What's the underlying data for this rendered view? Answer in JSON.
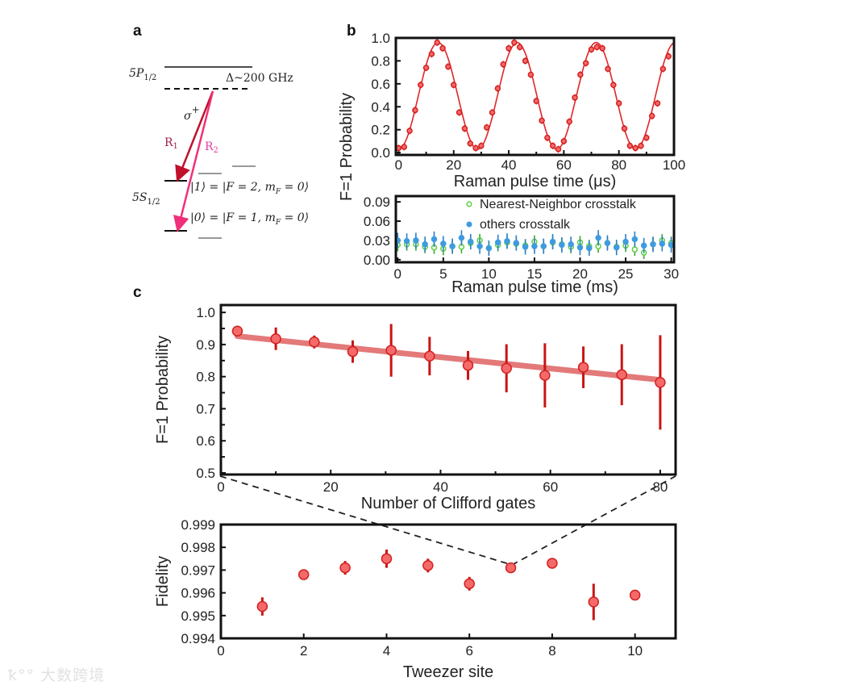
{
  "panel_labels": {
    "a": "a",
    "b": "b",
    "c": "c"
  },
  "diagram": {
    "upper_level": "5P",
    "upper_level_sub": "1/2",
    "detuning": "Δ~200 GHz",
    "polarization": "σ",
    "polarization_sup": "+",
    "beam1": "R",
    "beam1_sub": "1",
    "beam2": "R",
    "beam2_sub": "2",
    "lower_level": "5S",
    "lower_level_sub": "1/2",
    "state1": "|1⟩ = |F = 2, m",
    "state1_sub": "F",
    "state1_end": " = 0⟩",
    "state0": "|0⟩ = |F = 1, m",
    "state0_sub": "F",
    "state0_end": " = 0⟩",
    "colors": {
      "beam1": "#c0102a",
      "beam2": "#f0307a",
      "level": "#111111",
      "sublevel": "#999999"
    }
  },
  "shared_ylabel_b": "F=1 Probability",
  "watermark": "大数跨境",
  "chart_data": [
    {
      "id": "rabi",
      "type": "scatter",
      "xlabel": "Raman pulse time (μs)",
      "ylabel": "F=1 Probability",
      "xlim": [
        -1,
        100
      ],
      "ylim": [
        -0.02,
        1.0
      ],
      "xticks": [
        0,
        20,
        40,
        60,
        80,
        100
      ],
      "xtick_labels": [
        "0",
        "20",
        "40",
        "60",
        "80",
        "100"
      ],
      "yticks": [
        0,
        0.2,
        0.4,
        0.6,
        0.8,
        1.0
      ],
      "ytick_labels": [
        "0.0",
        "0.2",
        "0.4",
        "0.6",
        "0.8",
        "1.0"
      ],
      "color": "#e0262a",
      "x": [
        0,
        2,
        4,
        6,
        8,
        10,
        12,
        14,
        16,
        18,
        20,
        22,
        24,
        26,
        28,
        30,
        32,
        34,
        36,
        38,
        40,
        42,
        44,
        46,
        48,
        50,
        52,
        54,
        56,
        58,
        60,
        62,
        64,
        66,
        68,
        70,
        72,
        74,
        76,
        78,
        80,
        82,
        84,
        86,
        88,
        90,
        92,
        94,
        96,
        98
      ],
      "y": [
        0.04,
        0.05,
        0.19,
        0.37,
        0.59,
        0.74,
        0.86,
        0.96,
        0.91,
        0.75,
        0.59,
        0.35,
        0.21,
        0.08,
        0.04,
        0.06,
        0.22,
        0.35,
        0.56,
        0.77,
        0.91,
        0.96,
        0.92,
        0.8,
        0.68,
        0.45,
        0.28,
        0.13,
        0.06,
        0.03,
        0.1,
        0.27,
        0.48,
        0.68,
        0.78,
        0.9,
        0.92,
        0.91,
        0.73,
        0.59,
        0.43,
        0.21,
        0.06,
        0.04,
        0.06,
        0.13,
        0.32,
        0.43,
        0.73,
        0.84
      ],
      "err": 0.03,
      "fit": {
        "model": "offset + amplitude*(1-cos(2*pi*t/period))/2",
        "offset": 0.03,
        "amplitude": 0.93,
        "period": 28.7
      }
    },
    {
      "id": "crosstalk",
      "type": "scatter",
      "xlabel": "Raman pulse time (ms)",
      "xlim": [
        -0.2,
        30.3
      ],
      "ylim": [
        -0.004,
        0.099
      ],
      "xticks": [
        0,
        5,
        10,
        15,
        20,
        25,
        30
      ],
      "xtick_labels": [
        "0",
        "5",
        "10",
        "15",
        "20",
        "25",
        "30"
      ],
      "yticks": [
        0,
        0.03,
        0.06,
        0.09
      ],
      "ytick_labels": [
        "0.00",
        "0.03",
        "0.06",
        "0.09"
      ],
      "legend_position": "top-right",
      "x": [
        0,
        1,
        2,
        3,
        4,
        5,
        6,
        7,
        8,
        9,
        10,
        11,
        12,
        13,
        14,
        15,
        16,
        17,
        18,
        19,
        20,
        21,
        22,
        23,
        24,
        25,
        26,
        27,
        28,
        29,
        30
      ],
      "series": [
        {
          "name": "Nearest-Neighbor crosstalk",
          "color": "#5ccf3c",
          "y": [
            0.023,
            0.024,
            0.024,
            0.02,
            0.019,
            0.017,
            0.021,
            0.02,
            0.026,
            0.03,
            0.018,
            0.023,
            0.027,
            0.025,
            0.022,
            0.028,
            0.021,
            0.027,
            0.024,
            0.02,
            0.027,
            0.021,
            0.021,
            0.026,
            0.02,
            0.022,
            0.016,
            0.011,
            0.024,
            0.03,
            0.026
          ],
          "err": 0.01
        },
        {
          "name": "others crosstalk",
          "color": "#3f9be0",
          "y": [
            0.03,
            0.029,
            0.03,
            0.024,
            0.032,
            0.025,
            0.021,
            0.034,
            0.028,
            0.021,
            0.018,
            0.027,
            0.029,
            0.026,
            0.02,
            0.021,
            0.021,
            0.028,
            0.023,
            0.024,
            0.019,
            0.018,
            0.034,
            0.026,
            0.019,
            0.028,
            0.032,
            0.022,
            0.024,
            0.025,
            0.023
          ],
          "err": 0.012
        }
      ]
    },
    {
      "id": "rb",
      "type": "scatter",
      "xlabel": "Number of Clifford gates",
      "ylabel": "F=1 Probability",
      "xlim": [
        0,
        82.8
      ],
      "ylim": [
        0.495,
        1.023
      ],
      "xticks": [
        0,
        20,
        40,
        60,
        80
      ],
      "xtick_labels": [
        "0",
        "20",
        "40",
        "60",
        "80"
      ],
      "yticks": [
        0.5,
        0.6,
        0.7,
        0.8,
        0.9,
        1.0
      ],
      "ytick_labels": [
        "0.5",
        "0.6",
        "0.7",
        "0.8",
        "0.9",
        "1.0"
      ],
      "color": "#e0262a",
      "x": [
        3,
        10,
        17,
        24,
        31,
        38,
        45,
        52,
        59,
        66,
        73,
        80
      ],
      "y": [
        0.942,
        0.918,
        0.908,
        0.878,
        0.882,
        0.864,
        0.835,
        0.826,
        0.804,
        0.829,
        0.806,
        0.782
      ],
      "err": [
        0.01,
        0.035,
        0.02,
        0.035,
        0.082,
        0.06,
        0.045,
        0.075,
        0.1,
        0.065,
        0.095,
        0.147
      ],
      "fit": {
        "x": [
          3,
          80
        ],
        "y": [
          0.926,
          0.79
        ]
      }
    },
    {
      "id": "fidelity",
      "type": "scatter",
      "xlabel": "Tweezer site",
      "ylabel": "Fidelity",
      "xlim": [
        0,
        10.98
      ],
      "ylim": [
        0.994,
        0.999
      ],
      "xticks": [
        0,
        2,
        4,
        6,
        8,
        10
      ],
      "xtick_labels": [
        "0",
        "2",
        "4",
        "6",
        "8",
        "10"
      ],
      "yticks": [
        0.994,
        0.995,
        0.996,
        0.997,
        0.998,
        0.999
      ],
      "ytick_labels": [
        "0.994",
        "0.995",
        "0.996",
        "0.997",
        "0.998",
        "0.999"
      ],
      "color": "#e0262a",
      "x": [
        1,
        2,
        3,
        4,
        5,
        6,
        7,
        8,
        9,
        10
      ],
      "y": [
        0.9954,
        0.9968,
        0.9971,
        0.9975,
        0.9972,
        0.9964,
        0.9971,
        0.9973,
        0.9956,
        0.9959
      ],
      "err": [
        0.0004,
        0.0001,
        0.0003,
        0.0004,
        0.0003,
        0.0003,
        0.0001,
        0.0001,
        0.0008,
        0.0001
      ]
    }
  ]
}
